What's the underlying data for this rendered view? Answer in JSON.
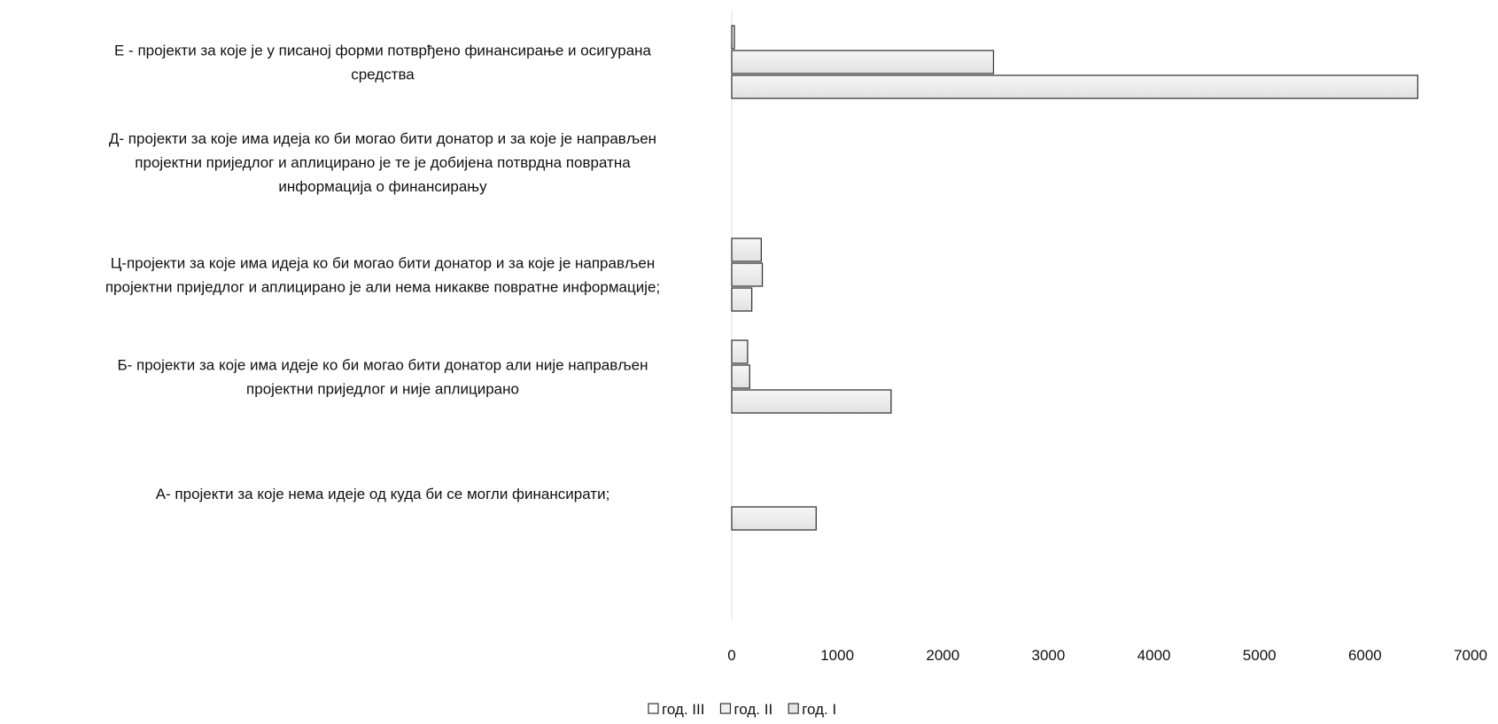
{
  "chart_data": {
    "type": "bar",
    "orientation": "horizontal",
    "categories": [
      "А- пројекти за које нема идеје од куда би се могли финансирати;",
      "Б- пројекти за које има идеје ко би могао бити донатор али није направљен пројектни приједлог и није аплицирано",
      "Ц-пројекти за које има идеја ко би могао бити донатор и за које је направљен пројектни приједлог и аплицирано је али нема никакве повратне информације;",
      "Д- пројекти за које има идеја ко би могао бити донатор и за које је направљен пројектни приједлог и аплицирано је те је добијена потврдна повратна информација о финансирању",
      "Е - пројекти за које је у писаној форми потврђено финансирање и осигурана средства"
    ],
    "category_lines": [
      [
        "А- пројекти за које нема идеје од куда би се могли финансирати;"
      ],
      [
        "Б- пројекти за које има идеје ко би могао бити донатор али није направљен",
        "пројектни приједлог и није аплицирано"
      ],
      [
        "Ц-пројекти за које има идеја ко би могао бити донатор и за које је направљен",
        "пројектни приједлог и аплицирано је али нема никакве повратне информације;"
      ],
      [
        "Д- пројекти за које има идеја ко би могао бити донатор и за које је направљен",
        "пројектни приједлог и аплицирано је те је добијена потврдна повратна",
        "информација о финансирању"
      ],
      [
        "Е - пројекти за које је у писаној форми потврђено финансирање и осигурана",
        "средства"
      ]
    ],
    "series": [
      {
        "name": "год. III",
        "values": [
          0,
          150,
          280,
          0,
          25
        ]
      },
      {
        "name": "год. II",
        "values": [
          0,
          170,
          290,
          0,
          2480
        ]
      },
      {
        "name": "год. I",
        "values": [
          800,
          1510,
          190,
          0,
          6500
        ]
      }
    ],
    "xlim": [
      0,
      7000
    ],
    "xticks": [
      "0",
      "1000",
      "2000",
      "3000",
      "4000",
      "5000",
      "6000",
      "7000"
    ],
    "legend_position": "bottom",
    "grid": false,
    "colors": {
      "bar_fill": "#e2e2e2",
      "bar_edge": "#3a3a3a",
      "highlight": "#f6f6f6"
    }
  }
}
